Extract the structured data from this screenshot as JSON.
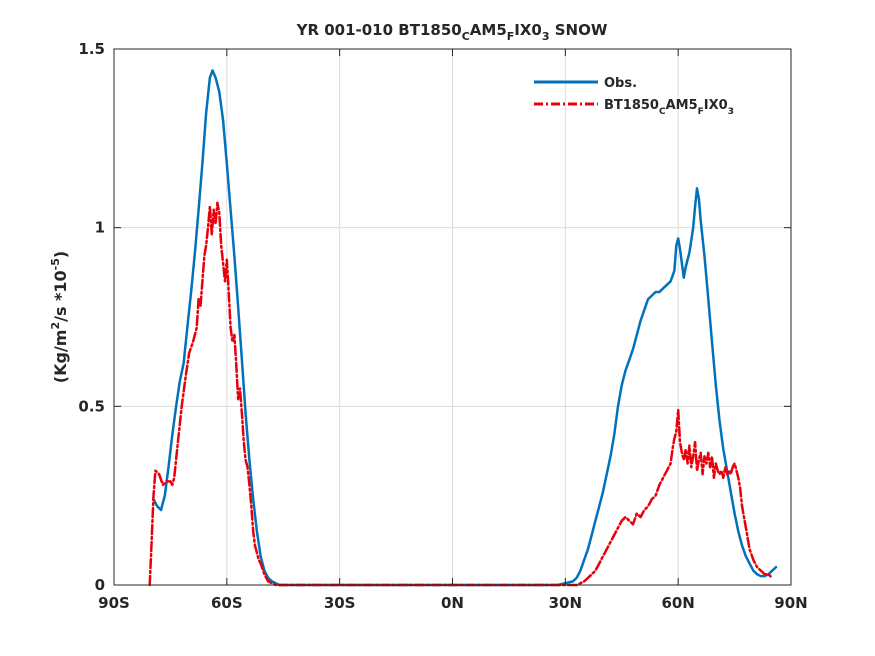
{
  "chart_data": {
    "type": "line",
    "title": "YR 001-010 BT1850_CAM5_FIX0_3 SNOW",
    "title_parts": {
      "main": "YR 001-010 BT1850",
      "sub1": "C",
      "mid1": "AM5",
      "sub2": "F",
      "mid2": "IX0",
      "sub3": "3",
      "tail": " SNOW"
    },
    "ylabel": "(Kg/m^2/s *10^-5)",
    "ylabel_parts": {
      "a": "(Kg/m",
      "sup1": "2",
      "b": "/s *10",
      "sup2": "-5",
      "c": ")"
    },
    "xlabel": "",
    "xlim": [
      -90,
      90
    ],
    "ylim": [
      0,
      1.5
    ],
    "x_ticks": [
      -90,
      -60,
      -30,
      0,
      30,
      60,
      90
    ],
    "x_tick_labels": [
      "90S",
      "60S",
      "30S",
      "0N",
      "30N",
      "60N",
      "90N"
    ],
    "y_ticks": [
      0,
      0.5,
      1,
      1.5
    ],
    "y_tick_labels": [
      "0",
      "0.5",
      "1",
      "1.5"
    ],
    "grid": true,
    "legend_position": "top-right",
    "series": [
      {
        "name": "Obs.",
        "legend_parts": {
          "main": "Obs."
        },
        "color": "#0072BD",
        "style": "solid",
        "x": [
          -79.5,
          -78.5,
          -77.5,
          -76.5,
          -75.5,
          -74.5,
          -73.5,
          -72.5,
          -71.5,
          -70.5,
          -69.5,
          -68.5,
          -67.5,
          -66.5,
          -65.5,
          -64.5,
          -63.8,
          -63.0,
          -62.0,
          -61.0,
          -60.0,
          -59.0,
          -58.0,
          -57.0,
          -56.0,
          -55.0,
          -54.0,
          -53.0,
          -52.0,
          -51.0,
          -50.0,
          -49.0,
          -48.0,
          -47.0,
          -46.0,
          -45.0,
          -44.0,
          -43.0,
          -40.0,
          -30.0,
          -20.0,
          -10.0,
          0.0,
          10.0,
          20.0,
          28.0,
          30.0,
          32.0,
          33.0,
          34.0,
          35.0,
          36.0,
          37.0,
          38.0,
          39.0,
          40.0,
          41.0,
          42.0,
          43.0,
          44.0,
          45.0,
          46.0,
          47.0,
          48.0,
          49.0,
          50.0,
          51.0,
          52.0,
          53.0,
          54.0,
          55.0,
          56.0,
          57.0,
          58.0,
          59.0,
          59.5,
          60.0,
          60.5,
          61.0,
          61.5,
          62.0,
          63.0,
          64.0,
          64.5,
          65.0,
          65.5,
          66.0,
          67.0,
          68.0,
          69.0,
          70.0,
          71.0,
          72.0,
          73.0,
          74.0,
          75.0,
          76.0,
          77.0,
          78.0,
          79.0,
          80.0,
          81.0,
          82.0,
          83.0,
          84.0,
          85.0,
          86.0
        ],
        "values": [
          0.24,
          0.22,
          0.21,
          0.25,
          0.33,
          0.42,
          0.5,
          0.57,
          0.62,
          0.72,
          0.82,
          0.93,
          1.05,
          1.18,
          1.32,
          1.42,
          1.44,
          1.42,
          1.38,
          1.3,
          1.18,
          1.05,
          0.92,
          0.78,
          0.63,
          0.48,
          0.35,
          0.24,
          0.15,
          0.08,
          0.04,
          0.02,
          0.01,
          0.005,
          0.0,
          0.0,
          0.0,
          0.0,
          0.0,
          0.0,
          0.0,
          0.0,
          0.0,
          0.0,
          0.0,
          0.0,
          0.005,
          0.01,
          0.02,
          0.04,
          0.07,
          0.1,
          0.14,
          0.18,
          0.22,
          0.26,
          0.31,
          0.36,
          0.42,
          0.5,
          0.56,
          0.6,
          0.63,
          0.66,
          0.7,
          0.74,
          0.77,
          0.8,
          0.81,
          0.82,
          0.82,
          0.83,
          0.84,
          0.85,
          0.88,
          0.95,
          0.97,
          0.94,
          0.9,
          0.86,
          0.89,
          0.93,
          1.0,
          1.06,
          1.11,
          1.08,
          1.02,
          0.92,
          0.8,
          0.68,
          0.56,
          0.46,
          0.38,
          0.32,
          0.26,
          0.2,
          0.15,
          0.11,
          0.08,
          0.06,
          0.04,
          0.03,
          0.025,
          0.025,
          0.03,
          0.04,
          0.05
        ]
      },
      {
        "name": "BT1850_CAM5_FIX0_3",
        "legend_parts": {
          "main": "BT1850",
          "sub1": "C",
          "mid1": "AM5",
          "sub2": "F",
          "mid2": "IX0",
          "sub3": "3"
        },
        "color": "#E8000B",
        "style": "dash-dot",
        "x": [
          -80.5,
          -80.0,
          -79.5,
          -79.0,
          -78.0,
          -77.0,
          -76.0,
          -75.0,
          -74.5,
          -74.0,
          -73.0,
          -72.0,
          -71.0,
          -70.0,
          -69.0,
          -68.0,
          -67.5,
          -67.0,
          -66.5,
          -66.0,
          -65.5,
          -65.0,
          -64.5,
          -64.0,
          -63.5,
          -63.0,
          -62.5,
          -62.0,
          -61.5,
          -61.0,
          -60.5,
          -60.0,
          -59.5,
          -59.0,
          -58.5,
          -58.0,
          -57.5,
          -57.0,
          -56.5,
          -56.0,
          -55.5,
          -55.0,
          -54.5,
          -54.0,
          -53.5,
          -53.0,
          -52.5,
          -52.0,
          -51.5,
          -51.0,
          -50.0,
          -49.0,
          -48.0,
          -47.0,
          -46.0,
          -45.0,
          -40.0,
          -30.0,
          -20.0,
          -10.0,
          0.0,
          10.0,
          20.0,
          30.0,
          33.0,
          34.0,
          35.0,
          36.0,
          37.0,
          38.0,
          39.0,
          40.0,
          41.0,
          42.0,
          43.0,
          44.0,
          45.0,
          46.0,
          47.0,
          48.0,
          49.0,
          50.0,
          51.0,
          52.0,
          53.0,
          54.0,
          55.0,
          56.0,
          57.0,
          58.0,
          58.5,
          59.0,
          59.5,
          60.0,
          60.5,
          61.0,
          61.5,
          62.0,
          62.5,
          63.0,
          63.5,
          64.0,
          64.5,
          65.0,
          65.5,
          66.0,
          66.5,
          67.0,
          67.5,
          68.0,
          68.5,
          69.0,
          69.5,
          70.0,
          70.5,
          71.0,
          71.5,
          72.0,
          72.5,
          73.0,
          73.5,
          74.0,
          74.5,
          75.0,
          75.5,
          76.0,
          76.5,
          77.0,
          78.0,
          79.0,
          80.0,
          81.0,
          82.0,
          83.0,
          84.0,
          85.0
        ],
        "values": [
          0.0,
          0.12,
          0.25,
          0.32,
          0.31,
          0.28,
          0.29,
          0.29,
          0.28,
          0.3,
          0.4,
          0.5,
          0.58,
          0.65,
          0.68,
          0.72,
          0.8,
          0.78,
          0.85,
          0.92,
          0.95,
          1.0,
          1.06,
          0.98,
          1.05,
          1.01,
          1.07,
          1.04,
          0.95,
          0.9,
          0.85,
          0.91,
          0.82,
          0.72,
          0.68,
          0.7,
          0.62,
          0.52,
          0.55,
          0.48,
          0.4,
          0.35,
          0.33,
          0.28,
          0.22,
          0.15,
          0.11,
          0.09,
          0.07,
          0.06,
          0.03,
          0.01,
          0.005,
          0.0,
          0.0,
          0.0,
          0.0,
          0.0,
          0.0,
          0.0,
          0.0,
          0.0,
          0.0,
          0.0,
          0.0,
          0.005,
          0.01,
          0.02,
          0.03,
          0.04,
          0.06,
          0.08,
          0.1,
          0.12,
          0.14,
          0.16,
          0.18,
          0.19,
          0.18,
          0.17,
          0.2,
          0.19,
          0.21,
          0.22,
          0.24,
          0.25,
          0.28,
          0.3,
          0.32,
          0.34,
          0.38,
          0.41,
          0.43,
          0.49,
          0.4,
          0.37,
          0.35,
          0.38,
          0.34,
          0.39,
          0.33,
          0.36,
          0.4,
          0.32,
          0.35,
          0.37,
          0.31,
          0.36,
          0.34,
          0.37,
          0.33,
          0.36,
          0.3,
          0.34,
          0.32,
          0.31,
          0.32,
          0.3,
          0.33,
          0.31,
          0.32,
          0.31,
          0.33,
          0.34,
          0.32,
          0.3,
          0.27,
          0.22,
          0.16,
          0.1,
          0.07,
          0.05,
          0.04,
          0.03,
          0.03,
          0.02
        ]
      }
    ]
  }
}
